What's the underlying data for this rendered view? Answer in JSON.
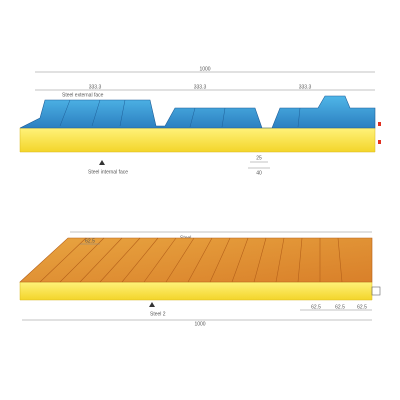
{
  "top_panel": {
    "width_label": "1000",
    "segment_labels": [
      "333.3",
      "333.3",
      "333.3"
    ],
    "external_face_label": "Steel external face",
    "internal_face_label": "Steel internal face",
    "rib_dims": [
      "25",
      "40"
    ]
  },
  "bottom_panel": {
    "top_label": "Steel",
    "rib_spacing": "62.5",
    "bottom_label": "Steel 2",
    "width_label": "1000",
    "edge_dims": [
      "62.5",
      "62.5",
      "62.5"
    ]
  }
}
